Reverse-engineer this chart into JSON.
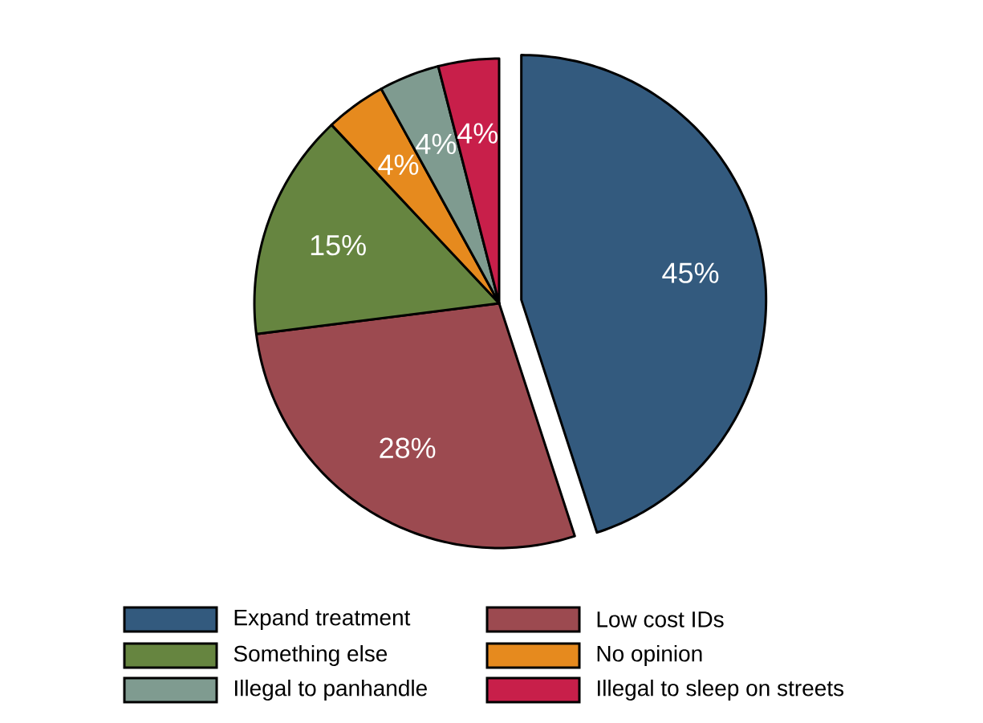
{
  "chart_data": {
    "type": "pie",
    "categories": [
      "Expand treatment",
      "Low cost IDs",
      "Something else",
      "No opinion",
      "Illegal to panhandle",
      "Illegal to sleep on streets"
    ],
    "values": [
      45,
      28,
      15,
      4,
      4,
      4
    ],
    "value_labels": [
      "45%",
      "28%",
      "15%",
      "4%",
      "4%",
      "4%"
    ],
    "colors": [
      "#335a7e",
      "#9c4a50",
      "#668540",
      "#e68a1e",
      "#7f9b90",
      "#c81f4a"
    ],
    "legend": "bottom"
  }
}
